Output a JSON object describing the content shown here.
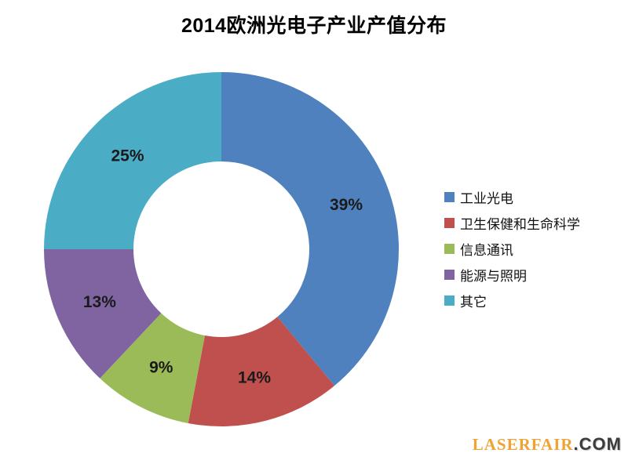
{
  "title": "2014欧洲光电子产业产值分布",
  "chart_data": {
    "type": "pie",
    "subtype": "donut",
    "title": "2014欧洲光电子产业产值分布",
    "categories": [
      "工业光电",
      "卫生保健和生命科学",
      "信息通讯",
      "能源与照明",
      "其它"
    ],
    "values": [
      39,
      14,
      9,
      13,
      25
    ],
    "unit": "%",
    "value_labels": [
      "39%",
      "14%",
      "9%",
      "13%",
      "25%"
    ],
    "colors": [
      "#4E81BD",
      "#C0504D",
      "#9BBB59",
      "#8064A2",
      "#4BACC6"
    ],
    "legend_position": "right",
    "start_angle_deg": 0,
    "direction": "clockwise",
    "donut_hole_ratio": 0.5
  },
  "watermark": {
    "brand": "LASERFAIR",
    "suffix": ".COM",
    "brand_color": "#F0A233",
    "suffix_color": "#3B3B3B"
  }
}
